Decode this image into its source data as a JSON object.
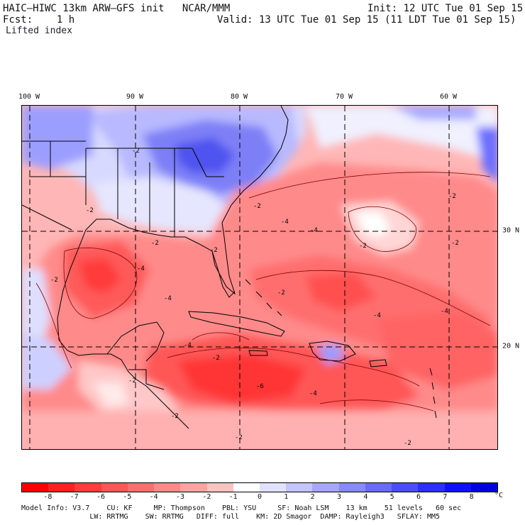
{
  "header": {
    "model_line": "HAIC–HIWC 13km ARW–GFS init   NCAR/MMM",
    "init_line": "Init: 12 UTC Tue 01 Sep 15",
    "fcst_line": "Fcst:    1 h",
    "valid_line": "Valid: 13 UTC Tue 01 Sep 15 (11 LDT Tue 01 Sep 15)",
    "field_name": "Lifted index"
  },
  "map": {
    "longitude_labels": [
      "100 W",
      "90 W",
      "80 W",
      "70 W",
      "60 W"
    ],
    "latitude_labels": [
      "30 N",
      "20 N"
    ],
    "contour_labels": [
      "-2",
      "-2",
      "-2",
      "-2",
      "-2",
      "-4",
      "-4",
      "-2",
      "-2",
      "-4",
      "-4",
      "-4",
      "-4",
      "-6",
      "-4",
      "-2",
      "-2",
      "-2",
      "-2",
      "-2",
      "-4",
      "-2",
      "-2",
      "-2"
    ],
    "colors": {
      "strong_negative": "#ff2a2a",
      "moderate_negative": "#ff6b6b",
      "weak_negative": "#ff9c9c",
      "near_zero": "#ffd0d0",
      "neutral": "#ffffff",
      "weak_positive": "#cfd0ff",
      "moderate_positive": "#7e80ff",
      "strong_positive": "#3a3ef0"
    }
  },
  "colorbar": {
    "labels": [
      "-8",
      "-7",
      "-6",
      "-5",
      "-4",
      "-3",
      "-2",
      "-1",
      "0",
      "1",
      "2",
      "3",
      "4",
      "5",
      "6",
      "7",
      "8"
    ],
    "unit": "°C",
    "colors": [
      "#ff0000",
      "#ff2020",
      "#ff3c3c",
      "#ff5656",
      "#ff6e6e",
      "#ff8888",
      "#ffa2a2",
      "#ffc2c2",
      "#ffffff",
      "#e2e2ff",
      "#c4c4ff",
      "#a6a6ff",
      "#8888ff",
      "#6a6aff",
      "#4c4cff",
      "#2e2eff",
      "#1010ff",
      "#0000e0"
    ]
  },
  "footer": {
    "line1": "Model Info: V3.7    CU: KF     MP: Thompson    PBL: YSU     SF: Noah LSM    13 km    51 levels   60 sec",
    "line2": "                LW: RRTMG    SW: RRTMG   DIFF: full    KM: 2D Smagor  DAMP: Rayleigh3   SFLAY: MM5"
  }
}
